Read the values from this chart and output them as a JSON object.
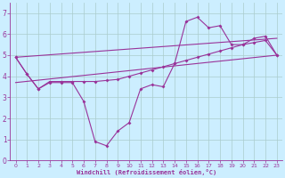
{
  "title": "",
  "xlabel": "Windchill (Refroidissement éolien,°C)",
  "ylabel": "",
  "bg_color": "#cceeff",
  "line_color": "#993399",
  "grid_color": "#aacccc",
  "xlim": [
    -0.5,
    23.5
  ],
  "ylim": [
    0,
    7.5
  ],
  "xticks": [
    0,
    1,
    2,
    3,
    4,
    5,
    6,
    7,
    8,
    9,
    10,
    11,
    12,
    13,
    14,
    15,
    16,
    17,
    18,
    19,
    20,
    21,
    22,
    23
  ],
  "yticks": [
    0,
    1,
    2,
    3,
    4,
    5,
    6,
    7
  ],
  "series": [
    {
      "x": [
        0,
        1,
        2,
        3,
        4,
        5,
        6,
        7,
        8,
        9,
        10,
        11,
        12,
        13,
        14,
        15,
        16,
        17,
        18,
        19,
        20,
        21,
        22,
        23
      ],
      "y": [
        4.9,
        4.1,
        3.4,
        3.7,
        3.7,
        3.7,
        2.8,
        0.9,
        0.7,
        1.4,
        1.8,
        3.4,
        3.6,
        3.5,
        4.6,
        6.6,
        6.8,
        6.3,
        6.4,
        5.5,
        5.5,
        5.8,
        5.9,
        5.0
      ],
      "marker": true
    },
    {
      "x": [
        0,
        1,
        2,
        3,
        4,
        5,
        6,
        7,
        8,
        9,
        10,
        11,
        12,
        13,
        14,
        15,
        16,
        17,
        18,
        19,
        20,
        21,
        22,
        23
      ],
      "y": [
        4.9,
        4.1,
        3.4,
        3.75,
        3.75,
        3.75,
        3.75,
        3.75,
        3.8,
        3.85,
        4.0,
        4.15,
        4.3,
        4.45,
        4.6,
        4.75,
        4.9,
        5.05,
        5.2,
        5.35,
        5.5,
        5.6,
        5.7,
        5.0
      ],
      "marker": true
    },
    {
      "x": [
        0,
        23
      ],
      "y": [
        3.7,
        5.0
      ],
      "marker": false
    },
    {
      "x": [
        0,
        23
      ],
      "y": [
        4.9,
        5.8
      ],
      "marker": false
    }
  ]
}
